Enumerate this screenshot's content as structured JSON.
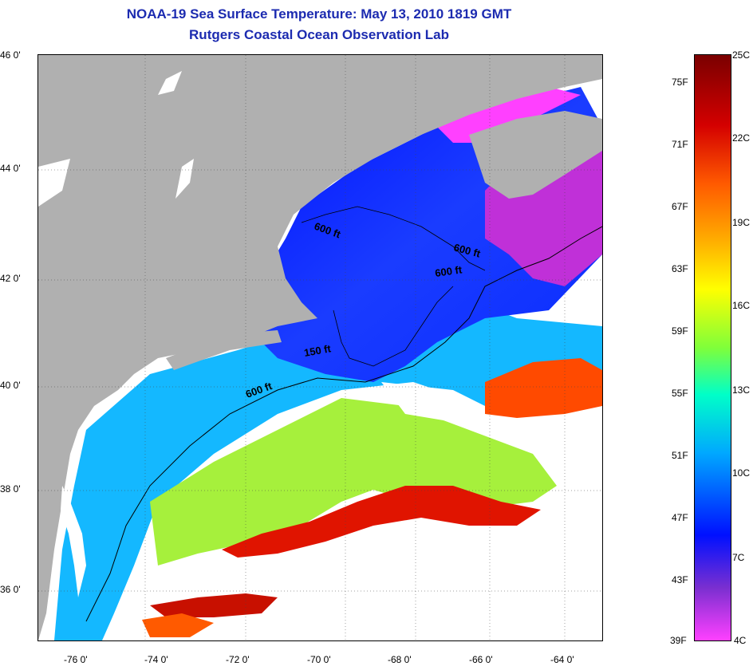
{
  "title_line1": "NOAA-19 Sea Surface Temperature:  May 13, 2010 1819 GMT",
  "title_line2": "Rutgers Coastal Ocean Observation Lab",
  "lat_labels": [
    "46 0'",
    "44 0'",
    "42 0'",
    "40 0'",
    "38 0'",
    "36 0'"
  ],
  "lon_labels": [
    "-76 0'",
    "-74 0'",
    "-72 0'",
    "-70 0'",
    "-68 0'",
    "-66 0'",
    "-64 0'"
  ],
  "contour_labels": [
    "600 ft",
    "600 ft",
    "600 ft",
    "150 ft",
    "600 ft"
  ],
  "colorbar": {
    "fahrenheit": [
      "75F",
      "71F",
      "67F",
      "63F",
      "59F",
      "55F",
      "51F",
      "47F",
      "43F",
      "39F"
    ],
    "celsius": [
      "25C",
      "22C",
      "19C",
      "16C",
      "13C",
      "10C",
      "7C",
      "4C"
    ],
    "colors": [
      "#7a0000",
      "#d40000",
      "#ff5a00",
      "#ffb000",
      "#ffff00",
      "#7fff3a",
      "#00ffc8",
      "#00a8ff",
      "#0010ff",
      "#7a2fd0",
      "#ff40ff"
    ]
  },
  "colors": {
    "land": "#b0b0b0",
    "cloud": "#ffffff",
    "title": "#1c2bb0"
  }
}
